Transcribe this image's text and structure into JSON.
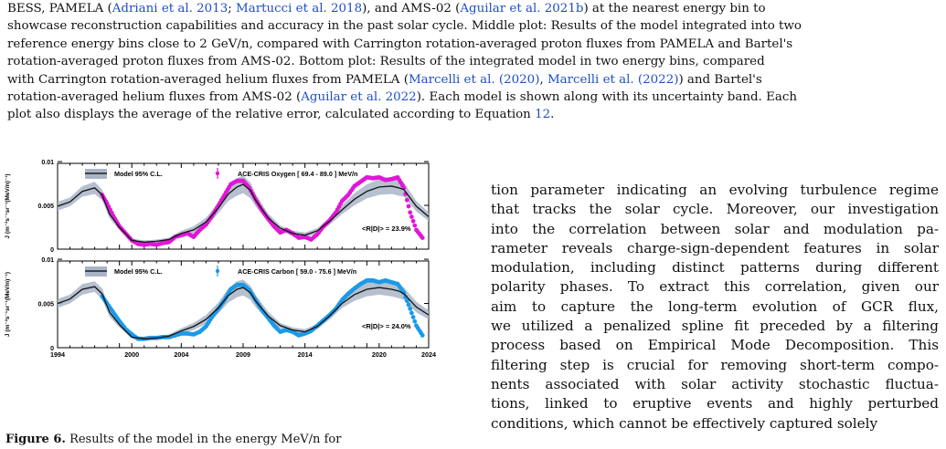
{
  "caption_lines": [
    [
      "BESS, PAMELA (",
      {
        "c": "Adriani et al. 2013"
      },
      "; ",
      {
        "c": "Martucci et al. 2018"
      },
      "), and AMS-02 (",
      {
        "c": "Aguilar et al. 2021b"
      },
      ") at the nearest energy bin to"
    ],
    [
      "showcase reconstruction capabilities and accuracy in the past solar cycle. Middle plot: Results of the model integrated into two"
    ],
    [
      "reference energy bins close to 2 GeV/n, compared with Carrington rotation-averaged proton fluxes from PAMELA and Bartel's"
    ],
    [
      "rotation-averaged proton fluxes from AMS-02. Bottom plot: Results of the integrated model in two energy bins, compared"
    ],
    [
      "with Carrington rotation-averaged helium fluxes from PAMELA (",
      {
        "c": "Marcelli et al. (2020)"
      },
      ", ",
      {
        "c": "Marcelli et al. (2022)"
      },
      ") and Bartel's"
    ],
    [
      "rotation-averaged helium fluxes from AMS-02 (",
      {
        "c": "Aguilar et al. 2022"
      },
      "). Each model is shown along with its uncertainty band. Each"
    ],
    [
      "plot also displays the average of the relative error, calculated according to Equation ",
      {
        "c": "12"
      },
      "."
    ]
  ],
  "body_lines": [
    "tion parameter indicating an evolving turbulence regime",
    "that tracks the solar cycle. Moreover, our investigation",
    "into the correlation between solar and modulation pa-",
    "rameter reveals charge-sign-dependent features in solar",
    "modulation, including distinct patterns during different",
    "polarity phases. To extract this correlation, given our",
    "aim to capture the long-term evolution of GCR flux,",
    "we utilized a penalized spline fit preceded by a filtering",
    "process based on Empirical Mode Decomposition. This",
    "filtering step is crucial for removing short-term compo-",
    "nents associated with solar activity stochastic fluctua-",
    "tions, linked to eruptive events and highly perturbed",
    "conditions, which cannot be effectively captured solely"
  ],
  "figure_caption": {
    "label": "Figure 6.",
    "text": " Results of the model in the energy MeV/n for"
  },
  "chart_data": [
    {
      "type": "line",
      "ylabel": "J (m⁻²s⁻¹sr⁻¹(MeV/n)⁻¹)",
      "xlim": [
        1994,
        2024
      ],
      "ylim": [
        0,
        0.0098
      ],
      "yticks": [
        "0",
        "0.005",
        "0.01"
      ],
      "ytick_values": [
        0,
        0.005,
        0.01
      ],
      "legend_model": "Model 95% C.L.",
      "legend_data": "ACE-CRIS Oxygen [ 69.4 - 89.0 ] MeV/n",
      "stat_label": "<R|D|> = 23.9%",
      "colors": {
        "model": "#111111",
        "band": "#a9b5c7",
        "data": "#e016d8"
      },
      "model": {
        "x": [
          1994,
          1995,
          1996,
          1997,
          1997.6,
          1998.2,
          1999,
          2000,
          2001,
          2002,
          2003,
          2004,
          2005,
          2006,
          2007,
          2007.8,
          2008.5,
          2009,
          2009.6,
          2010,
          2011,
          2012,
          2013,
          2014,
          2015,
          2016,
          2017,
          2018,
          2019,
          2020,
          2021,
          2021.6,
          2022,
          2023,
          2024
        ],
        "y": [
          0.0049,
          0.0054,
          0.0066,
          0.007,
          0.0062,
          0.004,
          0.0025,
          0.001,
          0.0008,
          0.0009,
          0.0011,
          0.0018,
          0.0022,
          0.0031,
          0.0047,
          0.0063,
          0.0071,
          0.0074,
          0.0067,
          0.0056,
          0.0036,
          0.0024,
          0.0018,
          0.0016,
          0.0021,
          0.0032,
          0.0045,
          0.0057,
          0.0066,
          0.0071,
          0.0072,
          0.007,
          0.0068,
          0.0049,
          0.0037
        ],
        "band": [
          0.0005,
          0.0005,
          0.0006,
          0.0007,
          0.0006,
          0.0005,
          0.0003,
          0.0002,
          0.0002,
          0.0002,
          0.0002,
          0.0003,
          0.0004,
          0.0005,
          0.0006,
          0.0008,
          0.001,
          0.001,
          0.0009,
          0.0007,
          0.0005,
          0.0003,
          0.0003,
          0.0003,
          0.0003,
          0.0004,
          0.0005,
          0.0007,
          0.0008,
          0.0009,
          0.0009,
          0.0009,
          0.0008,
          0.0006,
          0.0005
        ]
      },
      "data": {
        "x": [
          1997.6,
          1998.0,
          1998.5,
          1999.0,
          1999.5,
          2000.0,
          2000.5,
          2001.0,
          2001.5,
          2002.0,
          2002.5,
          2003.0,
          2003.5,
          2004.0,
          2004.5,
          2005.0,
          2005.5,
          2006.0,
          2006.5,
          2007.0,
          2007.5,
          2008.0,
          2008.5,
          2009.0,
          2009.5,
          2010.0,
          2010.5,
          2011.0,
          2011.5,
          2012.0,
          2012.5,
          2013.0,
          2013.5,
          2014.0,
          2014.5,
          2015.0,
          2015.5,
          2016.0,
          2016.5,
          2017.0,
          2017.5,
          2018.0,
          2018.5,
          2019.0,
          2019.5,
          2020.0,
          2020.5,
          2021.0,
          2021.5,
          2022.0,
          2022.5,
          2023.0,
          2023.5
        ],
        "y": [
          0.0062,
          0.0052,
          0.0038,
          0.0026,
          0.0018,
          0.001,
          0.0006,
          0.0005,
          0.0006,
          0.0005,
          0.0007,
          0.0008,
          0.0014,
          0.0016,
          0.0018,
          0.0014,
          0.0022,
          0.0028,
          0.0038,
          0.005,
          0.0062,
          0.0074,
          0.0078,
          0.0078,
          0.007,
          0.0057,
          0.0045,
          0.0035,
          0.0026,
          0.0019,
          0.0022,
          0.0018,
          0.0013,
          0.0014,
          0.0011,
          0.0017,
          0.0026,
          0.0033,
          0.0042,
          0.0055,
          0.0062,
          0.0072,
          0.0077,
          0.0082,
          0.0081,
          0.0082,
          0.0079,
          0.008,
          0.0082,
          0.007,
          0.0042,
          0.0022,
          0.0013
        ]
      }
    },
    {
      "type": "line",
      "ylabel": "J (m⁻²s⁻¹sr⁻¹(MeV/n)⁻¹)",
      "xlim": [
        1994,
        2024
      ],
      "ylim": [
        0,
        0.0098
      ],
      "yticks": [
        "0",
        "0.005",
        "0.01"
      ],
      "ytick_values": [
        0,
        0.005,
        0.01
      ],
      "xticks": [
        "1994",
        "2000",
        "2004",
        "2009",
        "2014",
        "2020",
        "2024"
      ],
      "xtick_values": [
        1994,
        2000,
        2004,
        2009,
        2014,
        2020,
        2024
      ],
      "legend_model": "Model 95% C.L.",
      "legend_data": "ACE-CRIS Carbon [ 59.0 - 75.6 ] MeV/n",
      "stat_label": "<R|D|> = 24.0%",
      "colors": {
        "model": "#111111",
        "band": "#a9b5c7",
        "data": "#1a9ae8"
      },
      "model": {
        "x": [
          1994,
          1995,
          1996,
          1997,
          1997.6,
          1998.2,
          1999,
          2000,
          2001,
          2002,
          2003,
          2004,
          2005,
          2006,
          2007,
          2007.8,
          2008.5,
          2009,
          2009.6,
          2010,
          2011,
          2012,
          2013,
          2014,
          2015,
          2016,
          2017,
          2018,
          2019,
          2020,
          2021,
          2021.6,
          2022,
          2023,
          2024
        ],
        "y": [
          0.005,
          0.0055,
          0.0066,
          0.0069,
          0.0061,
          0.004,
          0.0026,
          0.0012,
          0.001,
          0.0011,
          0.0013,
          0.0019,
          0.0024,
          0.0032,
          0.0045,
          0.0059,
          0.0066,
          0.0068,
          0.0062,
          0.0053,
          0.0036,
          0.0025,
          0.002,
          0.0018,
          0.0024,
          0.0036,
          0.005,
          0.006,
          0.0066,
          0.0068,
          0.0066,
          0.0064,
          0.0061,
          0.0046,
          0.0037
        ],
        "band": [
          0.0005,
          0.0005,
          0.0006,
          0.0006,
          0.0006,
          0.0005,
          0.0003,
          0.0002,
          0.0002,
          0.0002,
          0.0002,
          0.0003,
          0.0004,
          0.0005,
          0.0006,
          0.0008,
          0.0009,
          0.0009,
          0.0008,
          0.0007,
          0.0005,
          0.0003,
          0.0003,
          0.0003,
          0.0003,
          0.0004,
          0.0005,
          0.0007,
          0.0008,
          0.0008,
          0.0008,
          0.0008,
          0.0007,
          0.0006,
          0.0005
        ]
      },
      "data": {
        "x": [
          1997.6,
          1998.0,
          1998.5,
          1999.0,
          1999.5,
          2000.0,
          2000.5,
          2001.0,
          2001.5,
          2002.0,
          2002.5,
          2003.0,
          2003.5,
          2004.0,
          2004.5,
          2005.0,
          2005.5,
          2006.0,
          2006.5,
          2007.0,
          2007.5,
          2008.0,
          2008.5,
          2009.0,
          2009.5,
          2010.0,
          2010.5,
          2011.0,
          2011.5,
          2012.0,
          2012.5,
          2013.0,
          2013.5,
          2014.0,
          2014.5,
          2015.0,
          2015.5,
          2016.0,
          2016.5,
          2017.0,
          2017.5,
          2018.0,
          2018.5,
          2019.0,
          2019.5,
          2020.0,
          2020.5,
          2021.0,
          2021.5,
          2022.0,
          2022.5,
          2023.0,
          2023.5
        ],
        "y": [
          0.0058,
          0.005,
          0.004,
          0.003,
          0.0021,
          0.0015,
          0.001,
          0.001,
          0.0011,
          0.0011,
          0.0012,
          0.0012,
          0.0014,
          0.0016,
          0.0016,
          0.0015,
          0.0018,
          0.0024,
          0.0035,
          0.0044,
          0.0054,
          0.0066,
          0.0071,
          0.0071,
          0.0065,
          0.0054,
          0.0043,
          0.0034,
          0.0025,
          0.0018,
          0.002,
          0.0018,
          0.0014,
          0.0016,
          0.0019,
          0.0025,
          0.0031,
          0.0037,
          0.0044,
          0.0054,
          0.0061,
          0.0067,
          0.0072,
          0.0076,
          0.0076,
          0.0074,
          0.0076,
          0.0074,
          0.0072,
          0.0062,
          0.0044,
          0.0025,
          0.0014
        ]
      }
    }
  ]
}
